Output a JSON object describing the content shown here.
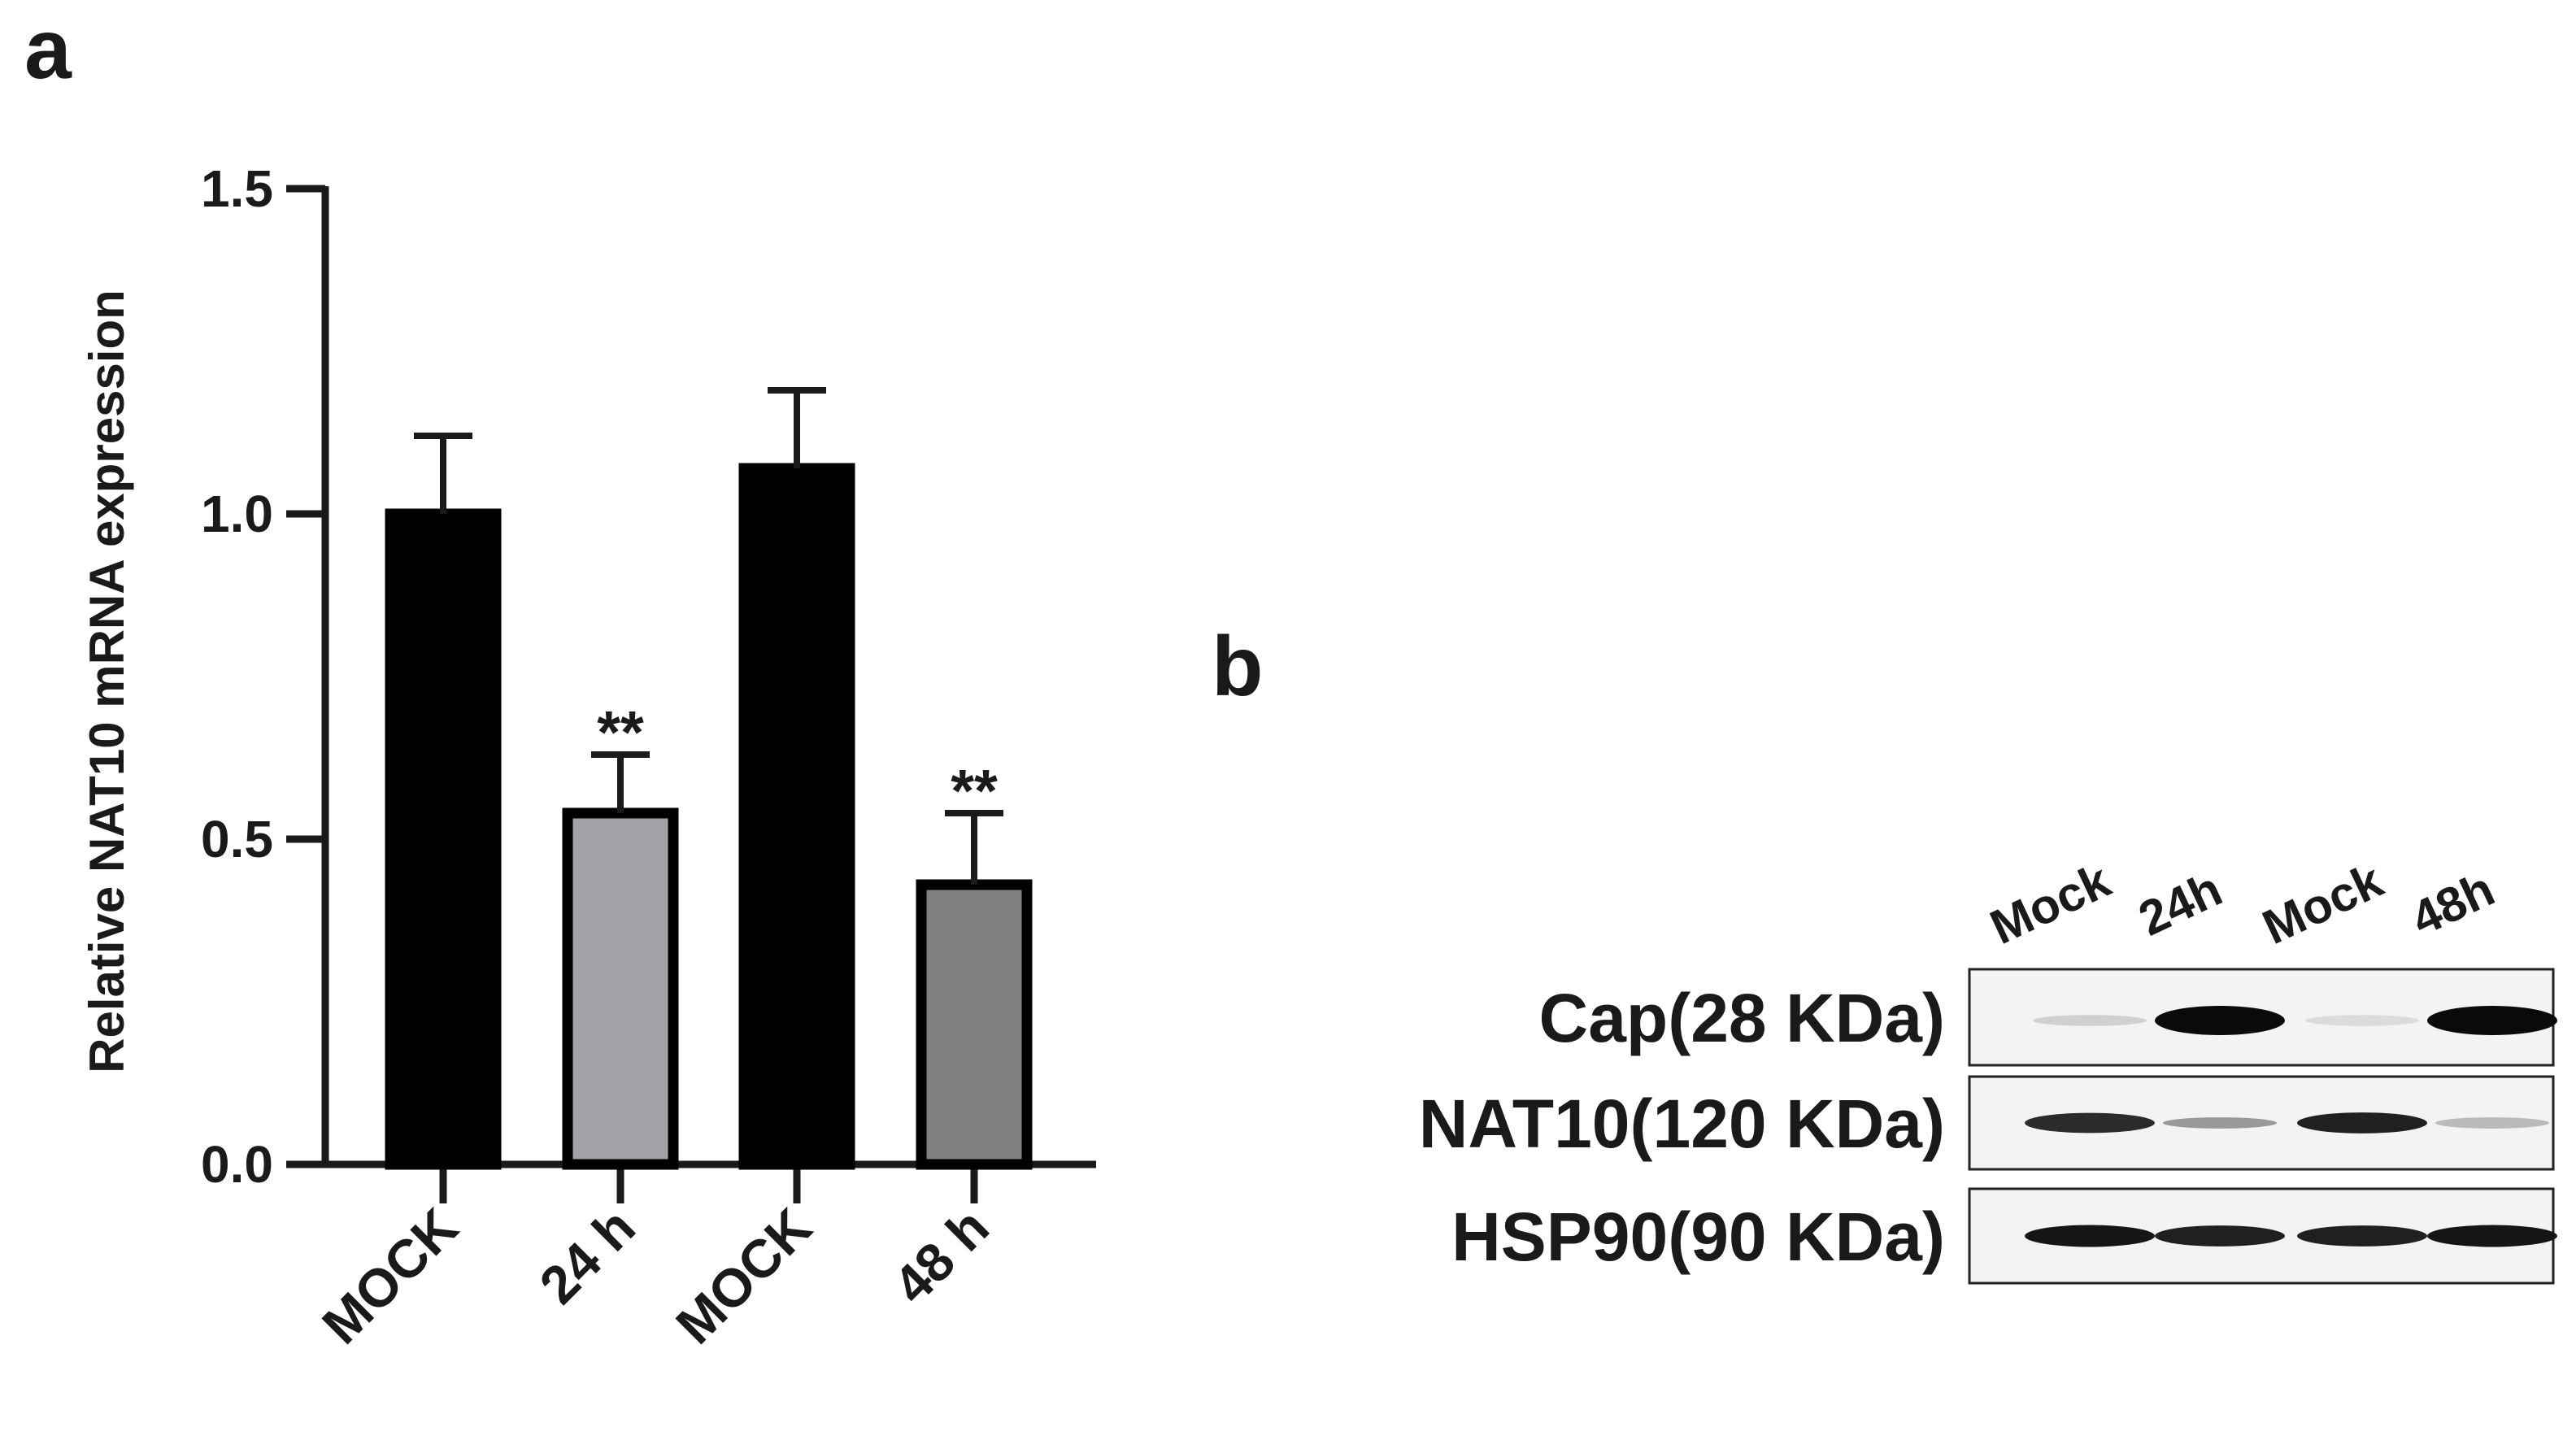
{
  "panels": {
    "a_label": "a",
    "b_label": "b"
  },
  "chart_data": {
    "type": "bar",
    "ylabel": "Relative NAT10 mRNA expression",
    "xlabel": "",
    "categories": [
      "MOCK",
      "24 h",
      "MOCK",
      "48 h"
    ],
    "values": [
      1.0,
      0.54,
      1.07,
      0.43
    ],
    "errors": [
      0.12,
      0.09,
      0.12,
      0.11
    ],
    "annotations": [
      "",
      "**",
      "",
      "**"
    ],
    "bar_colors": [
      "#000000",
      "#a3a3a7",
      "#000000",
      "#808080"
    ],
    "ylim": [
      0,
      1.5
    ],
    "yticks": [
      "0.0",
      "0.5",
      "1.0",
      "1.5"
    ],
    "ytick_values": [
      0,
      0.5,
      1.0,
      1.5
    ],
    "grid": false
  },
  "blot": {
    "lanes": [
      "Mock",
      "24h",
      "Mock",
      "48h"
    ],
    "rows": [
      {
        "label": "Cap(28 KDa)",
        "bands": [
          0.1,
          1.0,
          0.05,
          1.0
        ]
      },
      {
        "label": "NAT10(120 KDa)",
        "bands": [
          0.85,
          0.35,
          0.9,
          0.2
        ]
      },
      {
        "label": "HSP90(90 KDa)",
        "bands": [
          0.95,
          0.9,
          0.9,
          0.95
        ]
      }
    ]
  }
}
